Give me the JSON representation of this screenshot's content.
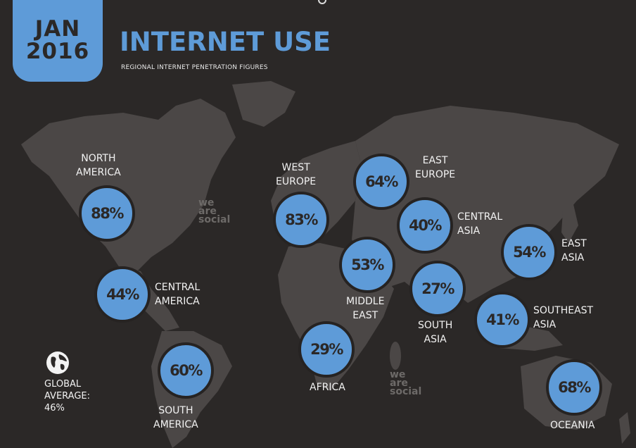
{
  "header": {
    "month": "JAN",
    "year": "2016",
    "title": "INTERNET USE",
    "subtitle": "REGIONAL INTERNET PENETRATION FIGURES"
  },
  "regions": [
    {
      "key": "north-america",
      "name_line1": "NORTH",
      "name_line2": "AMERICA",
      "value": "88%"
    },
    {
      "key": "central-america",
      "name_line1": "CENTRAL",
      "name_line2": "AMERICA",
      "value": "44%"
    },
    {
      "key": "south-america",
      "name_line1": "SOUTH",
      "name_line2": "AMERICA",
      "value": "60%"
    },
    {
      "key": "west-europe",
      "name_line1": "WEST",
      "name_line2": "EUROPE",
      "value": "83%"
    },
    {
      "key": "east-europe",
      "name_line1": "EAST",
      "name_line2": "EUROPE",
      "value": "64%"
    },
    {
      "key": "central-asia",
      "name_line1": "CENTRAL",
      "name_line2": "ASIA",
      "value": "40%"
    },
    {
      "key": "middle-east",
      "name_line1": "MIDDLE",
      "name_line2": "EAST",
      "value": "53%"
    },
    {
      "key": "south-asia",
      "name_line1": "SOUTH",
      "name_line2": "ASIA",
      "value": "27%"
    },
    {
      "key": "east-asia",
      "name_line1": "EAST",
      "name_line2": "ASIA",
      "value": "54%"
    },
    {
      "key": "southeast-asia",
      "name_line1": "SOUTHEAST",
      "name_line2": "ASIA",
      "value": "41%"
    },
    {
      "key": "africa",
      "name_line1": "AFRICA",
      "value": "29%"
    },
    {
      "key": "oceania",
      "name_line1": "OCEANIA",
      "value": "68%"
    }
  ],
  "global": {
    "line1": "GLOBAL",
    "line2": "AVERAGE:",
    "value": "46%"
  },
  "watermark": {
    "line1": "we",
    "line2": "are",
    "line3": "social"
  },
  "colors": {
    "background": "#2b2827",
    "land": "#4b4746",
    "accent": "#5e9bd8",
    "text": "#f2f2f2"
  },
  "icons": {
    "globe": "globe-icon"
  }
}
